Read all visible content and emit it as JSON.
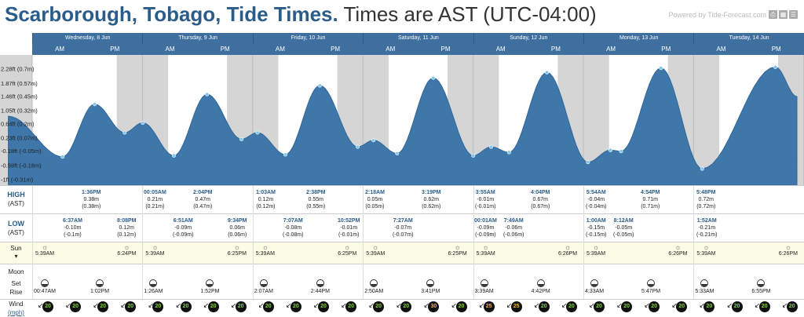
{
  "header": {
    "location": "Scarborough, Tobago, Tide Times.",
    "timezone": "Times are AST (UTC-04:00)",
    "powered_by": "Powered by Tide-Forecast.com"
  },
  "days": [
    "Wednesday, 8 Jun",
    "Thursday, 9 Jun",
    "Friday, 10 Jun",
    "Saturday, 11 Jun",
    "Sunday, 12 Jun",
    "Monday, 13 Jun",
    "Tuesday, 14 Jun"
  ],
  "ampm": {
    "am": "AM",
    "pm": "PM"
  },
  "y_axis_labels": [
    "2.28ft (0.7m)",
    "1.87ft (0.57m)",
    "1.46ft (0.45m)",
    "1.05ft (0.32m)",
    "0.64ft (0.2m)",
    "0.23ft (0.07m)",
    "-0.18ft (-0.05m)",
    "-0.59ft (-0.18m)",
    "-1ft (-0.31m)"
  ],
  "chart_data": {
    "type": "area",
    "ylabel": "",
    "unit": "m",
    "ylim": [
      -0.31,
      0.83
    ],
    "x_unit": "hours from Wed 8 Jun 00:00 AST",
    "points": [
      [
        6.62,
        -0.1
      ],
      [
        13.6,
        0.38
      ],
      [
        20.13,
        0.12
      ],
      [
        24.08,
        0.21
      ],
      [
        30.85,
        -0.09
      ],
      [
        38.07,
        0.47
      ],
      [
        45.57,
        0.06
      ],
      [
        49.05,
        0.12
      ],
      [
        55.12,
        -0.08
      ],
      [
        62.63,
        0.55
      ],
      [
        70.87,
        -0.01
      ],
      [
        74.3,
        0.05
      ],
      [
        79.45,
        -0.07
      ],
      [
        87.32,
        0.62
      ],
      [
        96.02,
        -0.09
      ],
      [
        99.92,
        -0.01
      ],
      [
        103.82,
        -0.06
      ],
      [
        112.07,
        0.67
      ],
      [
        121.0,
        -0.15
      ],
      [
        125.9,
        -0.04
      ],
      [
        128.2,
        -0.05
      ],
      [
        136.9,
        0.71
      ],
      [
        145.87,
        -0.21
      ],
      [
        161.8,
        0.72
      ]
    ]
  },
  "labels": {
    "high": "HIGH",
    "low": "LOW",
    "ast": "(AST)",
    "sun": "Sun",
    "moon": "Moon",
    "set": "Set",
    "rise": "Rise",
    "wind": "Wind",
    "mph": "(mph)"
  },
  "highs": [
    {
      "time": "1:36PM",
      "ft": "0.38m",
      "m": "(0.38m)"
    },
    {
      "time": "00:05AM",
      "ft": "0.21m",
      "m": "(0.21m)"
    },
    {
      "time": "2:04PM",
      "ft": "0.47m",
      "m": "(0.47m)"
    },
    {
      "time": "1:03AM",
      "ft": "0.12m",
      "m": "(0.12m)"
    },
    {
      "time": "2:38PM",
      "ft": "0.55m",
      "m": "(0.55m)"
    },
    {
      "time": "2:18AM",
      "ft": "0.05m",
      "m": "(0.05m)"
    },
    {
      "time": "3:19PM",
      "ft": "0.62m",
      "m": "(0.62m)"
    },
    {
      "time": "3:55AM",
      "ft": "-0.01m",
      "m": "(-0.01m)"
    },
    {
      "time": "4:04PM",
      "ft": "0.67m",
      "m": "(0.67m)"
    },
    {
      "time": "5:54AM",
      "ft": "-0.04m",
      "m": "(-0.04m)"
    },
    {
      "time": "4:54PM",
      "ft": "0.71m",
      "m": "(0.71m)"
    },
    {
      "time": "5:48PM",
      "ft": "0.72m",
      "m": "(0.72m)"
    }
  ],
  "lows": [
    {
      "time": "6:37AM",
      "ft": "-0.10m",
      "m": "(-0.1m)"
    },
    {
      "time": "8:08PM",
      "ft": "0.12m",
      "m": "(0.12m)"
    },
    {
      "time": "6:51AM",
      "ft": "-0.09m",
      "m": "(-0.09m)"
    },
    {
      "time": "9:34PM",
      "ft": "0.06m",
      "m": "(0.06m)"
    },
    {
      "time": "7:07AM",
      "ft": "-0.08m",
      "m": "(-0.08m)"
    },
    {
      "time": "10:52PM",
      "ft": "-0.01m",
      "m": "(-0.01m)"
    },
    {
      "time": "7:27AM",
      "ft": "-0.07m",
      "m": "(-0.07m)"
    },
    {
      "time": "00:01AM",
      "ft": "-0.09m",
      "m": "(-0.09m)"
    },
    {
      "time": "7:49AM",
      "ft": "-0.06m",
      "m": "(-0.06m)"
    },
    {
      "time": "1:00AM",
      "ft": "-0.15m",
      "m": "(-0.15m)"
    },
    {
      "time": "8:12AM",
      "ft": "-0.05m",
      "m": "(-0.05m)"
    },
    {
      "time": "1:52AM",
      "ft": "-0.21m",
      "m": "(-0.21m)"
    }
  ],
  "sun": [
    {
      "time": "5:39AM"
    },
    {
      "time": "6:24PM"
    },
    {
      "time": "5:39AM"
    },
    {
      "time": "6:25PM"
    },
    {
      "time": "5:39AM"
    },
    {
      "time": "6:25PM"
    },
    {
      "time": "5:39AM"
    },
    {
      "time": "6:25PM"
    },
    {
      "time": "5:39AM"
    },
    {
      "time": "6:26PM"
    },
    {
      "time": "5:39AM"
    },
    {
      "time": "6:26PM"
    },
    {
      "time": "5:39AM"
    },
    {
      "time": "6:26PM"
    }
  ],
  "moon": [
    {
      "time": "00:47AM"
    },
    {
      "time": "1:02PM"
    },
    {
      "time": "1:26AM"
    },
    {
      "time": "1:52PM"
    },
    {
      "time": "2:07AM"
    },
    {
      "time": "2:44PM"
    },
    {
      "time": "2:50AM"
    },
    {
      "time": "3:41PM"
    },
    {
      "time": "3:39AM"
    },
    {
      "time": "4:42PM"
    },
    {
      "time": "4:33AM"
    },
    {
      "time": "5:47PM"
    },
    {
      "time": "5:33AM"
    },
    {
      "time": "6:55PM"
    }
  ],
  "wind": [
    "20",
    "20",
    "20",
    "20",
    "20",
    "20",
    "20",
    "20",
    "20",
    "20",
    "20",
    "20",
    "20",
    "20",
    "30",
    "20",
    "25",
    "25",
    "20",
    "20",
    "20",
    "20",
    "20",
    "20",
    "20",
    "20",
    "20",
    "20"
  ]
}
